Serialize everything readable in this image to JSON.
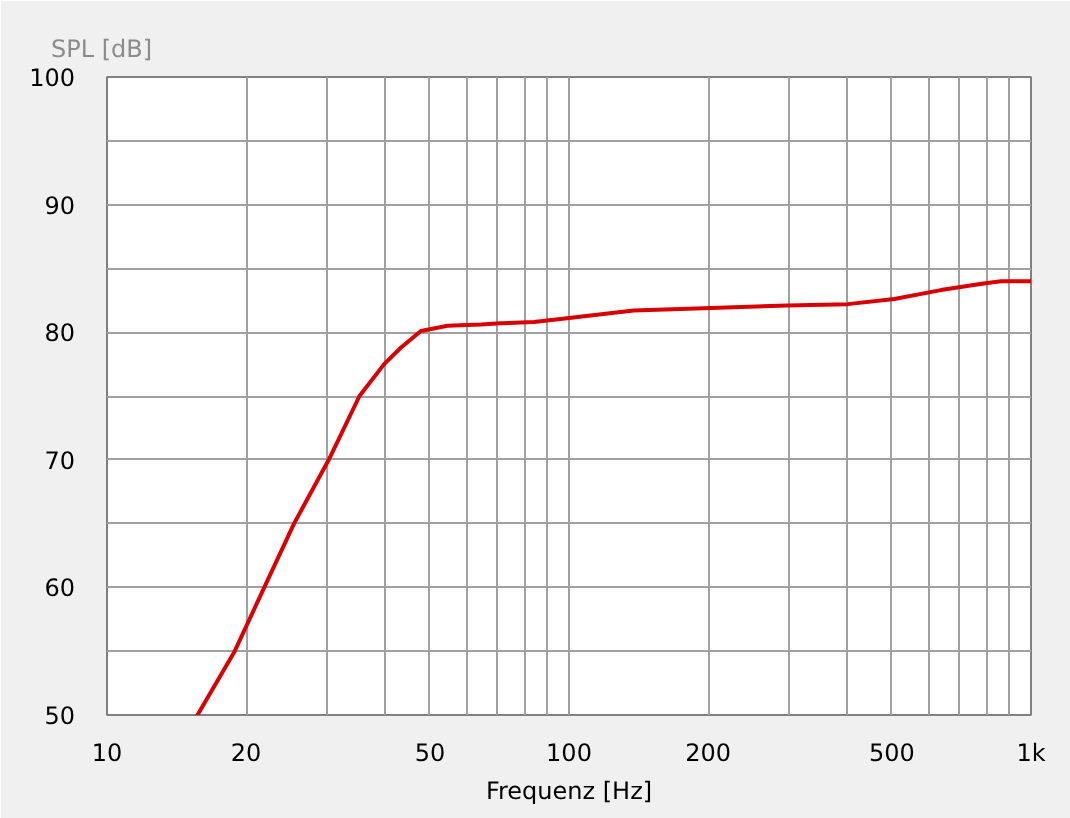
{
  "chart_data": {
    "type": "line",
    "title": "SPL [dB]",
    "xlabel": "Frequenz [Hz]",
    "log": "x",
    "grid": true,
    "xlim": [
      10,
      1000
    ],
    "ylim": [
      50,
      100
    ],
    "xticks": [
      10,
      20,
      {
        "value": 30,
        "label": null
      },
      {
        "value": 40,
        "label": null
      },
      50,
      {
        "value": 60,
        "label": null
      },
      {
        "value": 70,
        "label": null
      },
      {
        "value": 80,
        "label": null
      },
      {
        "value": 90,
        "label": null
      },
      100,
      200,
      {
        "value": 300,
        "label": null
      },
      {
        "value": 400,
        "label": null
      },
      500,
      {
        "value": 600,
        "label": null
      },
      {
        "value": 700,
        "label": null
      },
      {
        "value": 800,
        "label": null
      },
      {
        "value": 900,
        "label": null
      },
      {
        "value": 1000,
        "label": "1k"
      }
    ],
    "yticks": [
      50,
      {
        "value": 55,
        "label": null
      },
      60,
      {
        "value": 65,
        "label": null
      },
      70,
      {
        "value": 75,
        "label": null
      },
      80,
      {
        "value": 85,
        "label": null
      },
      90,
      {
        "value": 95,
        "label": null
      },
      100
    ],
    "series": [
      {
        "color": "#d80000",
        "x": [
          15.7,
          18.9,
          21.9,
          25.4,
          30.2,
          35.2,
          39.8,
          43.3,
          47.8,
          54.6,
          64.5,
          71,
          84,
          99,
          138,
          203,
          297,
          401,
          506,
          638,
          783,
          861,
          1000
        ],
        "values": [
          50.0,
          55.0,
          60.0,
          65.0,
          70.0,
          75.0,
          77.5,
          78.8,
          80.1,
          80.5,
          80.6,
          80.7,
          80.8,
          81.1,
          81.7,
          81.9,
          82.1,
          82.2,
          82.6,
          83.3,
          83.8,
          84.0,
          84.0
        ]
      }
    ]
  }
}
